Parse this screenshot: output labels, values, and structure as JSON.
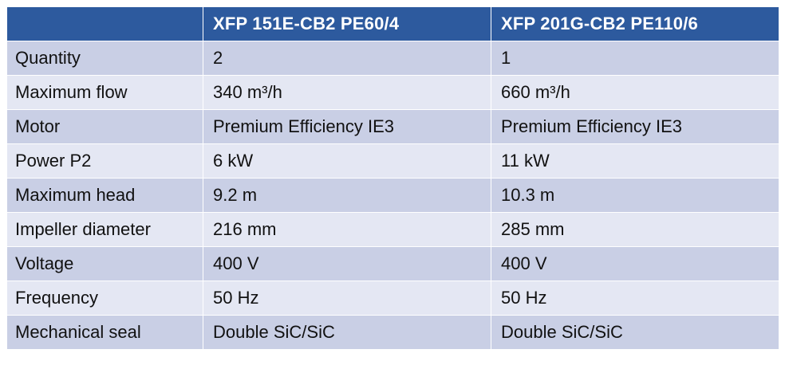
{
  "table": {
    "header": [
      "",
      "XFP 151E-CB2 PE60/4",
      "XFP 201G-CB2 PE110/6"
    ],
    "rows": [
      {
        "label": "Quantity",
        "values": [
          "2",
          "1"
        ]
      },
      {
        "label": "Maximum flow",
        "values": [
          "340 m³/h",
          "660 m³/h"
        ]
      },
      {
        "label": "Motor",
        "values": [
          "Premium Efficiency IE3",
          "Premium Efficiency IE3"
        ]
      },
      {
        "label": "Power P2",
        "values": [
          "6 kW",
          "11 kW"
        ]
      },
      {
        "label": "Maximum head",
        "values": [
          "9.2 m",
          "10.3 m"
        ]
      },
      {
        "label": "Impeller diameter",
        "values": [
          "216 mm",
          "285 mm"
        ]
      },
      {
        "label": "Voltage",
        "values": [
          "400 V",
          "400 V"
        ]
      },
      {
        "label": "Frequency",
        "values": [
          "50 Hz",
          "50 Hz"
        ]
      },
      {
        "label": "Mechanical seal",
        "values": [
          "Double SiC/SiC",
          "Double SiC/SiC"
        ]
      }
    ]
  },
  "colors": {
    "header_bg": "#2d5a9e",
    "header_text": "#ffffff",
    "row_dark": "#c9cfe5",
    "row_light": "#e4e7f3"
  }
}
